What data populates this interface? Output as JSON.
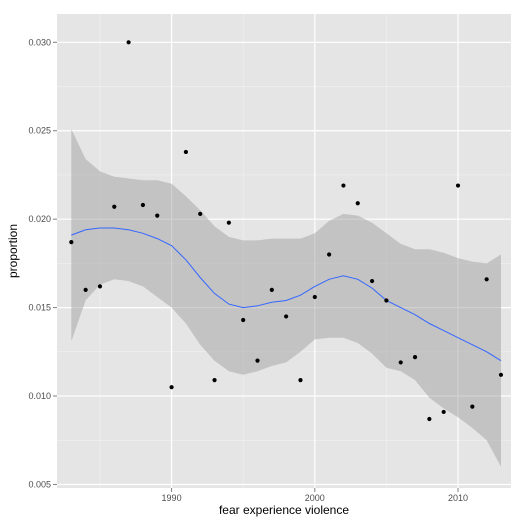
{
  "chart_data": {
    "type": "scatter",
    "title": "",
    "xlabel": "fear experience violence",
    "ylabel": "proportion",
    "xlim": [
      1982.0,
      2013.7
    ],
    "ylim": [
      0.0048,
      0.0316
    ],
    "x_ticks": [
      1990,
      2000,
      2010
    ],
    "x_tick_labels": [
      "1990",
      "2000",
      "2010"
    ],
    "y_ticks": [
      0.005,
      0.01,
      0.015,
      0.02,
      0.025,
      0.03
    ],
    "y_tick_labels": [
      "0.005",
      "0.010",
      "0.015",
      "0.020",
      "0.025",
      "0.030"
    ],
    "grid": true,
    "colors": {
      "panel": "#e5e5e5",
      "grid": "#ffffff",
      "points": "#000000",
      "smooth_line": "#3366ff",
      "confidence_band": "#999999"
    },
    "points": [
      {
        "x": 1983,
        "y": 0.0187
      },
      {
        "x": 1984,
        "y": 0.016
      },
      {
        "x": 1985,
        "y": 0.0162
      },
      {
        "x": 1986,
        "y": 0.0207
      },
      {
        "x": 1987,
        "y": 0.03
      },
      {
        "x": 1988,
        "y": 0.0208
      },
      {
        "x": 1989,
        "y": 0.0202
      },
      {
        "x": 1990,
        "y": 0.0105
      },
      {
        "x": 1991,
        "y": 0.0238
      },
      {
        "x": 1992,
        "y": 0.0203
      },
      {
        "x": 1993,
        "y": 0.0109
      },
      {
        "x": 1994,
        "y": 0.0198
      },
      {
        "x": 1995,
        "y": 0.0143
      },
      {
        "x": 1996,
        "y": 0.012
      },
      {
        "x": 1997,
        "y": 0.016
      },
      {
        "x": 1998,
        "y": 0.0145
      },
      {
        "x": 1999,
        "y": 0.0109
      },
      {
        "x": 2000,
        "y": 0.0156
      },
      {
        "x": 2001,
        "y": 0.018
      },
      {
        "x": 2002,
        "y": 0.0219
      },
      {
        "x": 2003,
        "y": 0.0209
      },
      {
        "x": 2004,
        "y": 0.0165
      },
      {
        "x": 2005,
        "y": 0.0154
      },
      {
        "x": 2006,
        "y": 0.0119
      },
      {
        "x": 2007,
        "y": 0.0122
      },
      {
        "x": 2008,
        "y": 0.0087
      },
      {
        "x": 2009,
        "y": 0.0091
      },
      {
        "x": 2010,
        "y": 0.0219
      },
      {
        "x": 2011,
        "y": 0.0094
      },
      {
        "x": 2012,
        "y": 0.0166
      },
      {
        "x": 2013,
        "y": 0.0112
      }
    ],
    "smooth": {
      "x": [
        1983,
        1984,
        1985,
        1986,
        1987,
        1988,
        1989,
        1990,
        1991,
        1992,
        1993,
        1994,
        1995,
        1996,
        1997,
        1998,
        1999,
        2000,
        2001,
        2002,
        2003,
        2004,
        2005,
        2006,
        2007,
        2008,
        2009,
        2010,
        2011,
        2012,
        2013
      ],
      "y": [
        0.0191,
        0.0194,
        0.0195,
        0.0195,
        0.0194,
        0.0192,
        0.0189,
        0.0185,
        0.0177,
        0.0167,
        0.0158,
        0.0152,
        0.015,
        0.0151,
        0.0153,
        0.0154,
        0.0157,
        0.0162,
        0.0166,
        0.0168,
        0.0166,
        0.0161,
        0.0154,
        0.015,
        0.0146,
        0.0141,
        0.0137,
        0.0133,
        0.0129,
        0.0125,
        0.012
      ],
      "upper": [
        0.0251,
        0.0234,
        0.0227,
        0.0224,
        0.0223,
        0.0222,
        0.0222,
        0.022,
        0.0213,
        0.0205,
        0.0196,
        0.019,
        0.0188,
        0.0188,
        0.0189,
        0.0189,
        0.0189,
        0.0192,
        0.0199,
        0.0203,
        0.0202,
        0.0198,
        0.0192,
        0.0186,
        0.0183,
        0.0183,
        0.0181,
        0.0178,
        0.0176,
        0.0175,
        0.018
      ],
      "lower": [
        0.0131,
        0.0154,
        0.0163,
        0.0166,
        0.0165,
        0.0162,
        0.0156,
        0.015,
        0.0141,
        0.0129,
        0.012,
        0.0114,
        0.0112,
        0.0114,
        0.0117,
        0.0119,
        0.0125,
        0.0132,
        0.0133,
        0.0133,
        0.013,
        0.0124,
        0.0116,
        0.0114,
        0.0109,
        0.0099,
        0.0093,
        0.0088,
        0.0082,
        0.0075,
        0.006
      ]
    }
  }
}
